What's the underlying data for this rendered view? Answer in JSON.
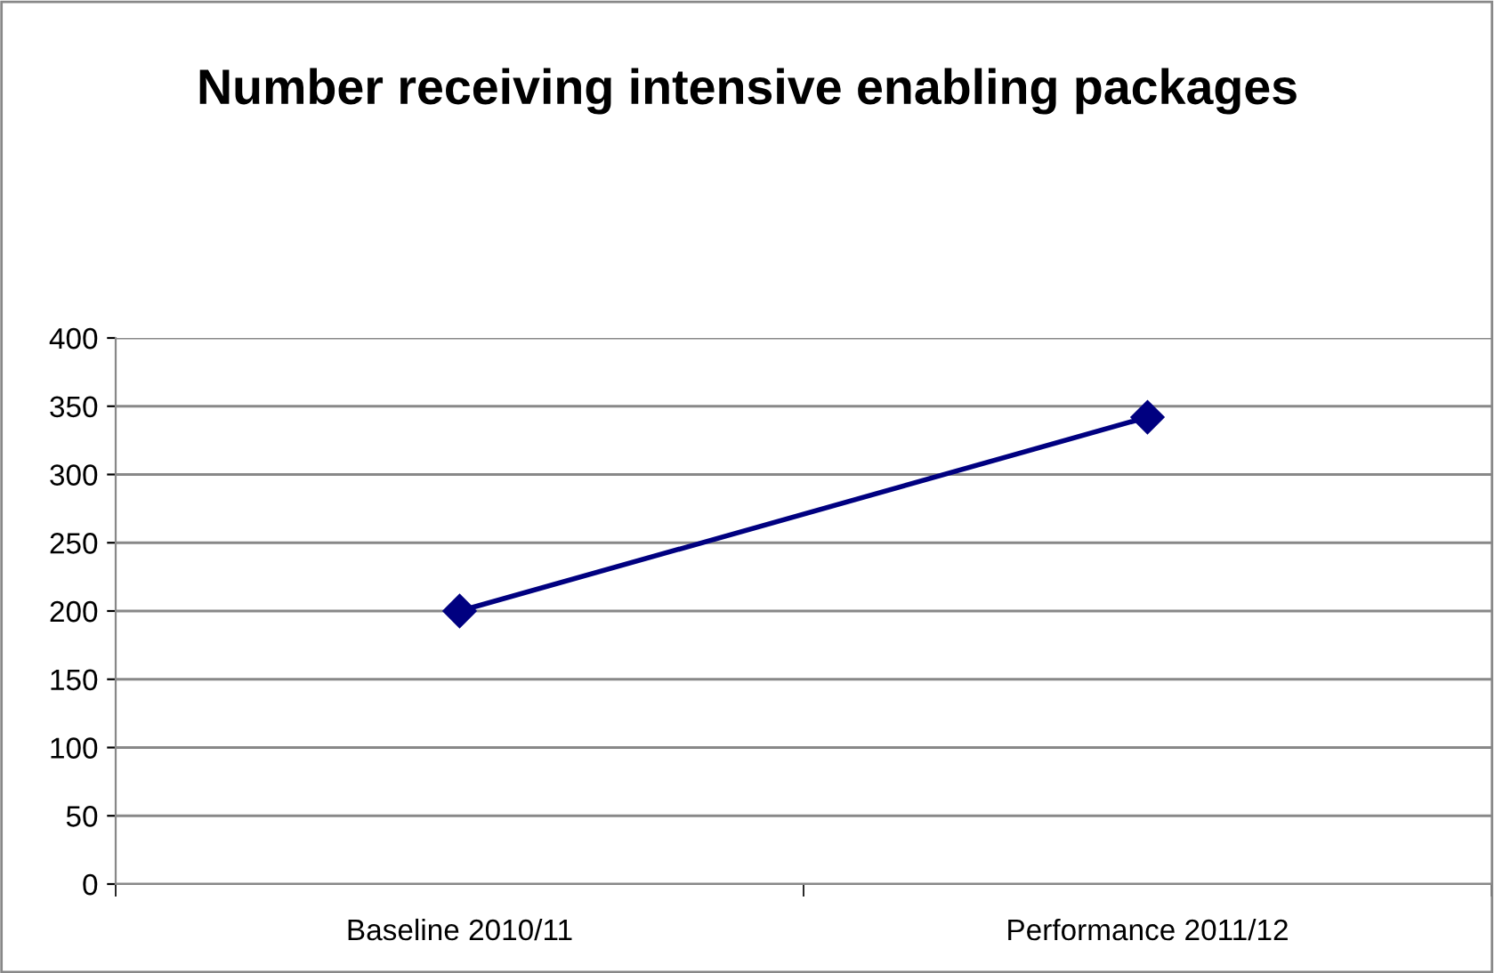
{
  "chart_data": {
    "type": "line",
    "title": "Number receiving intensive enabling packages",
    "categories": [
      "Baseline 2010/11",
      "Performance 2011/12"
    ],
    "series": [
      {
        "color": "#000080",
        "values": [
          200,
          342
        ]
      }
    ],
    "ylim": [
      0,
      400
    ],
    "yticks": [
      0,
      50,
      100,
      150,
      200,
      250,
      300,
      350,
      400
    ],
    "grid": "y",
    "marker": "diamond",
    "legend": false
  }
}
